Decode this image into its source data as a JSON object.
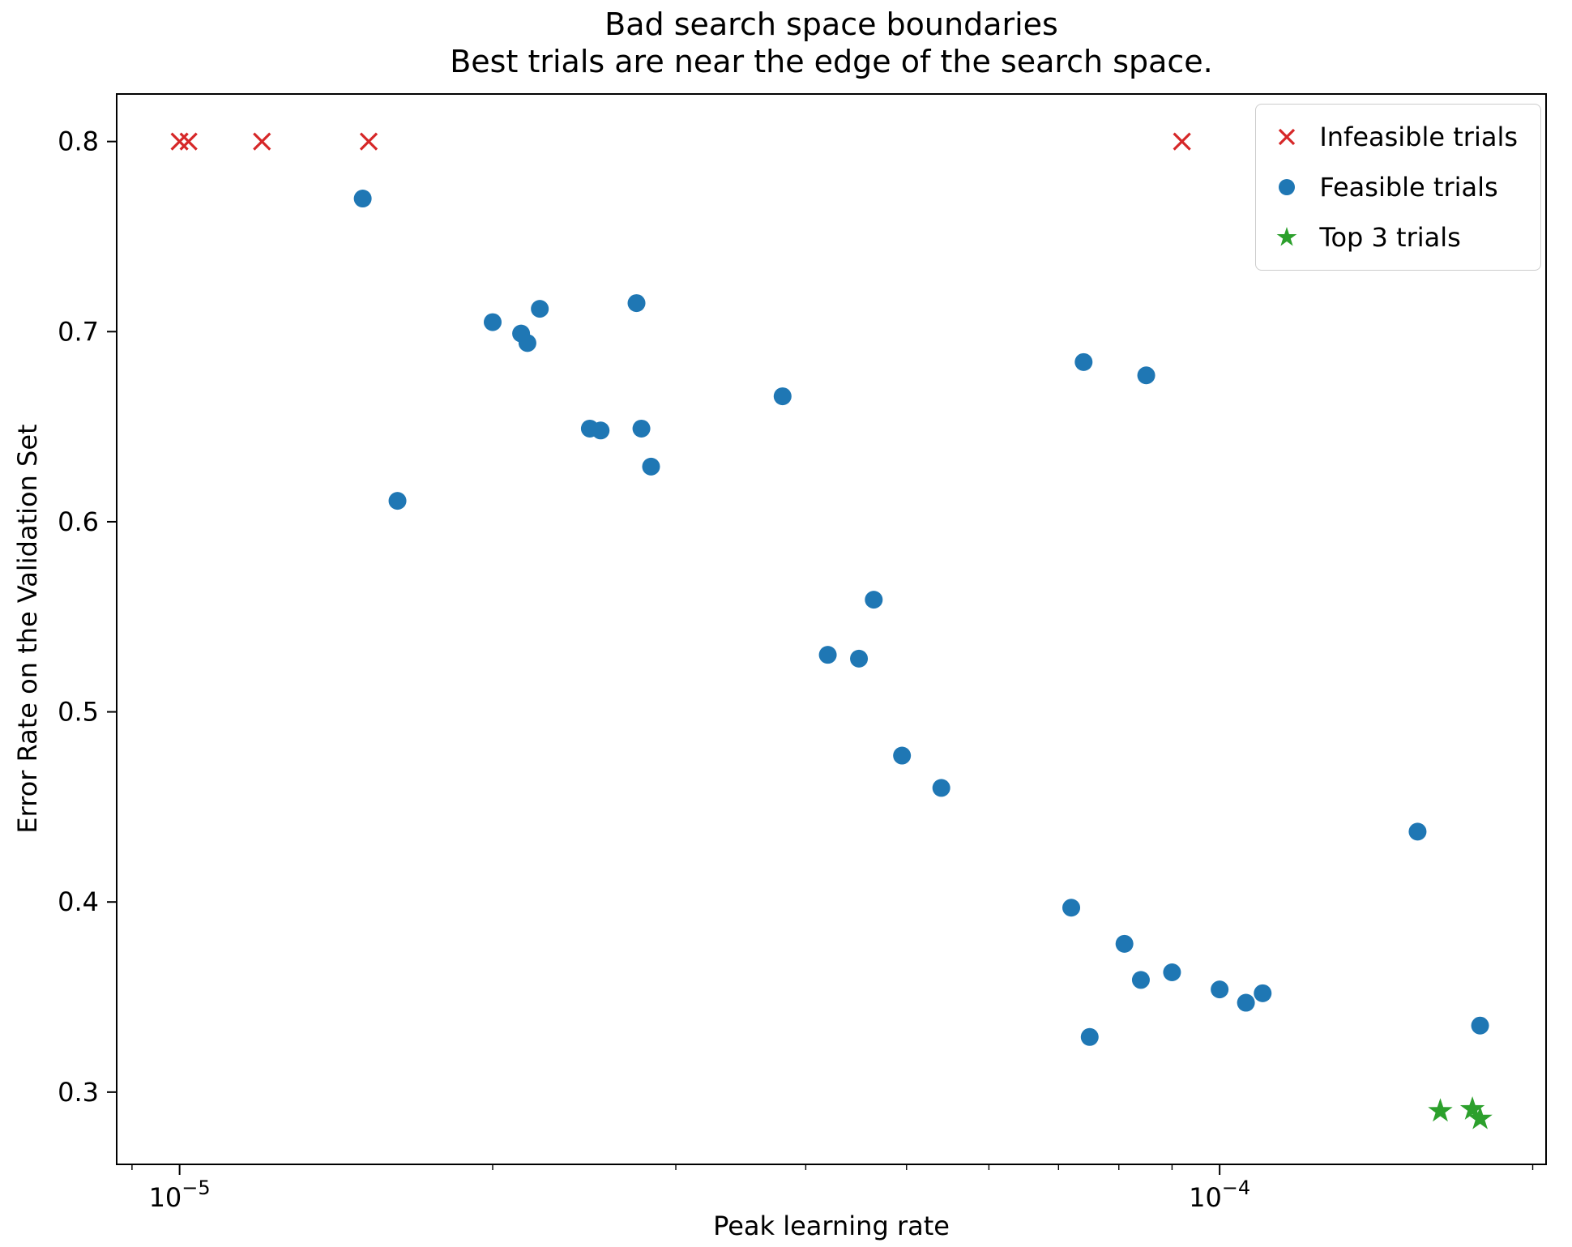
{
  "figure": {
    "title_line1": "Bad search space boundaries",
    "title_line2": "Best trials are near the edge of the search space.",
    "xlabel": "Peak learning rate",
    "ylabel": "Error Rate on the Validation Set"
  },
  "chart_data": {
    "type": "scatter",
    "title": "Bad search space boundaries\nBest trials are near the edge of the search space.",
    "xlabel": "Peak learning rate",
    "ylabel": "Error Rate on the Validation Set",
    "x_scale": "log",
    "grid": false,
    "legend_position": "upper right",
    "xlim": [
      8.7e-06,
      0.000206
    ],
    "ylim": [
      0.262,
      0.825
    ],
    "y_ticks": [
      {
        "value": 0.3,
        "label": "0.3"
      },
      {
        "value": 0.4,
        "label": "0.4"
      },
      {
        "value": 0.5,
        "label": "0.5"
      },
      {
        "value": 0.6,
        "label": "0.6"
      },
      {
        "value": 0.7,
        "label": "0.7"
      },
      {
        "value": 0.8,
        "label": "0.8"
      }
    ],
    "x_ticks": [
      {
        "value": 1e-05,
        "label_base": "10",
        "label_exp": "−5"
      },
      {
        "value": 0.0001,
        "label_base": "10",
        "label_exp": "−4"
      }
    ],
    "series": [
      {
        "name": "Infeasible trials",
        "marker": "x",
        "color": "#d62728",
        "points": [
          [
            1e-05,
            0.8
          ],
          [
            1.02e-05,
            0.8
          ],
          [
            1.2e-05,
            0.8
          ],
          [
            1.52e-05,
            0.8
          ],
          [
            9.2e-05,
            0.8
          ]
        ]
      },
      {
        "name": "Feasible trials",
        "marker": "circle",
        "color": "#1f77b4",
        "points": [
          [
            1.5e-05,
            0.77
          ],
          [
            1.62e-05,
            0.611
          ],
          [
            2e-05,
            0.705
          ],
          [
            2.13e-05,
            0.699
          ],
          [
            2.16e-05,
            0.694
          ],
          [
            2.22e-05,
            0.712
          ],
          [
            2.48e-05,
            0.649
          ],
          [
            2.54e-05,
            0.648
          ],
          [
            2.75e-05,
            0.715
          ],
          [
            2.78e-05,
            0.649
          ],
          [
            2.84e-05,
            0.629
          ],
          [
            3.8e-05,
            0.666
          ],
          [
            4.2e-05,
            0.53
          ],
          [
            4.5e-05,
            0.528
          ],
          [
            4.65e-05,
            0.559
          ],
          [
            4.95e-05,
            0.477
          ],
          [
            5.4e-05,
            0.46
          ],
          [
            7.4e-05,
            0.684
          ],
          [
            8.5e-05,
            0.677
          ],
          [
            7.2e-05,
            0.397
          ],
          [
            7.5e-05,
            0.329
          ],
          [
            8.1e-05,
            0.378
          ],
          [
            8.4e-05,
            0.359
          ],
          [
            9e-05,
            0.363
          ],
          [
            0.0001,
            0.354
          ],
          [
            0.000106,
            0.347
          ],
          [
            0.00011,
            0.352
          ],
          [
            0.000155,
            0.437
          ],
          [
            0.000178,
            0.335
          ]
        ]
      },
      {
        "name": "Top 3 trials",
        "marker": "star",
        "color": "#2ca02c",
        "points": [
          [
            0.000163,
            0.29
          ],
          [
            0.000175,
            0.291
          ],
          [
            0.000178,
            0.286
          ]
        ]
      }
    ]
  }
}
